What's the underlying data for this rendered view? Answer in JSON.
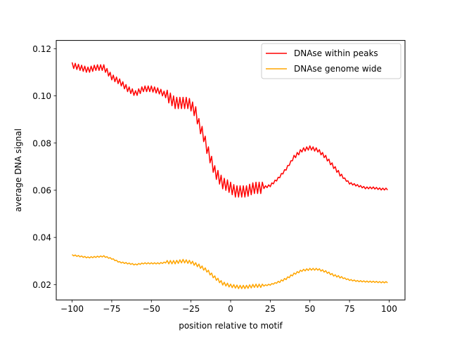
{
  "chart_data": {
    "type": "line",
    "title": "",
    "xlabel": "position relative to motif",
    "ylabel": "average DNA signal",
    "xlim": [
      -110,
      110
    ],
    "ylim": [
      0.0135,
      0.1235
    ],
    "xticks": [
      -100,
      -75,
      -50,
      -25,
      0,
      25,
      50,
      75,
      100
    ],
    "xtick_labels": [
      "−100",
      "−75",
      "−50",
      "−25",
      "0",
      "25",
      "50",
      "75",
      "100"
    ],
    "yticks": [
      0.02,
      0.04,
      0.06,
      0.08,
      0.1,
      0.12
    ],
    "ytick_labels": [
      "0.02",
      "0.04",
      "0.06",
      "0.08",
      "0.10",
      "0.12"
    ],
    "grid": false,
    "legend_position": "top-right",
    "series": [
      {
        "name": "DNAse within peaks",
        "color": "#ff0000",
        "x": [
          -100,
          -95,
          -90,
          -85,
          -80,
          -75,
          -70,
          -65,
          -60,
          -55,
          -50,
          -45,
          -40,
          -35,
          -30,
          -27,
          -25,
          -22,
          -20,
          -17,
          -15,
          -12,
          -10,
          -7,
          -5,
          -2,
          0,
          3,
          5,
          8,
          10,
          13,
          15,
          20,
          25,
          30,
          35,
          40,
          45,
          50,
          55,
          60,
          65,
          70,
          75,
          80,
          85,
          90,
          95,
          99
        ],
        "y": [
          0.113,
          0.112,
          0.111,
          0.112,
          0.112,
          0.108,
          0.106,
          0.103,
          0.101,
          0.103,
          0.103,
          0.102,
          0.1,
          0.097,
          0.097,
          0.097,
          0.096,
          0.093,
          0.088,
          0.083,
          0.078,
          0.072,
          0.068,
          0.065,
          0.063,
          0.062,
          0.061,
          0.0595,
          0.0595,
          0.0595,
          0.0595,
          0.0605,
          0.061,
          0.061,
          0.062,
          0.065,
          0.069,
          0.074,
          0.077,
          0.078,
          0.077,
          0.074,
          0.07,
          0.066,
          0.063,
          0.062,
          0.061,
          0.061,
          0.0605,
          0.0605
        ]
      },
      {
        "name": "DNAse genome wide",
        "color": "#ffa500",
        "x": [
          -100,
          -90,
          -80,
          -75,
          -70,
          -65,
          -60,
          -55,
          -50,
          -45,
          -40,
          -35,
          -30,
          -25,
          -20,
          -15,
          -10,
          -5,
          0,
          5,
          10,
          15,
          20,
          25,
          30,
          35,
          40,
          45,
          50,
          55,
          60,
          65,
          70,
          75,
          80,
          85,
          90,
          95,
          99
        ],
        "y": [
          0.0325,
          0.0315,
          0.032,
          0.031,
          0.0295,
          0.029,
          0.0285,
          0.029,
          0.029,
          0.029,
          0.0295,
          0.0295,
          0.03,
          0.0295,
          0.028,
          0.026,
          0.023,
          0.0205,
          0.0195,
          0.019,
          0.019,
          0.0195,
          0.0195,
          0.02,
          0.021,
          0.0225,
          0.0245,
          0.026,
          0.0265,
          0.0265,
          0.0255,
          0.024,
          0.023,
          0.022,
          0.0215,
          0.0213,
          0.0212,
          0.021,
          0.021
        ]
      }
    ]
  }
}
